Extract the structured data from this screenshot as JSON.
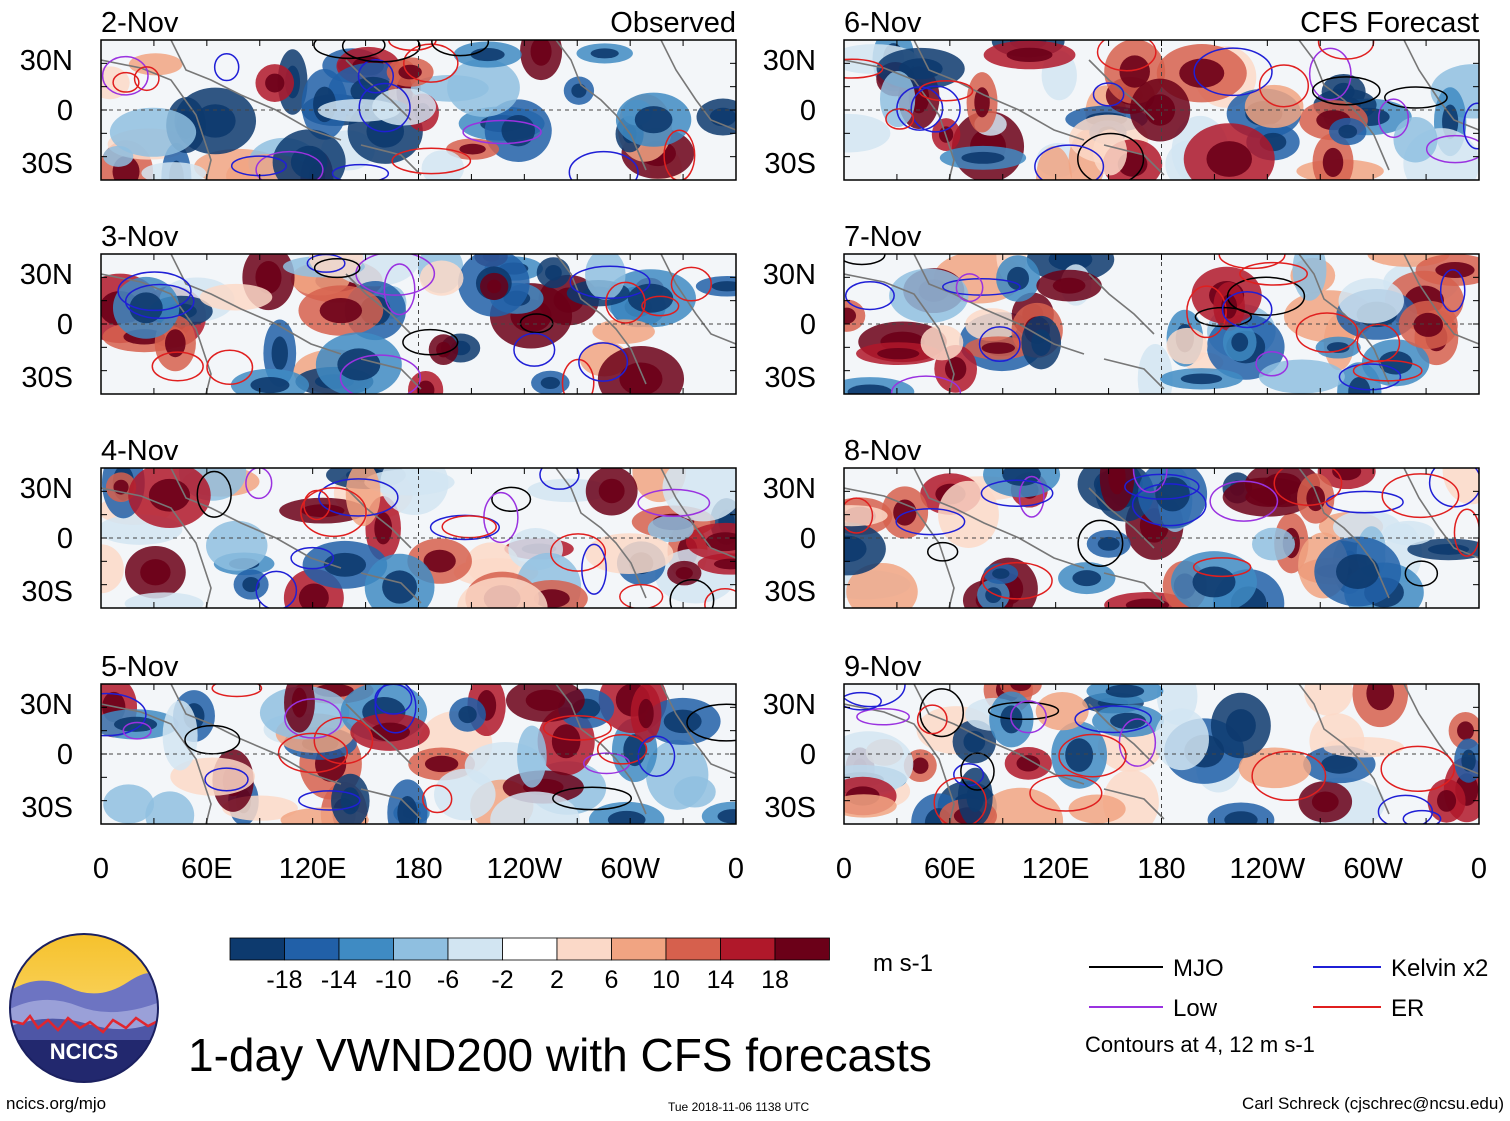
{
  "title": "1-day VWND200 with CFS forecasts",
  "left_header": "Observed",
  "right_header": "CFS Forecast",
  "units": "m s-1",
  "site": "ncics.org/mjo",
  "timestamp": "Tue 2018-11-06 1138 UTC",
  "author": "Carl Schreck (cjschrec@ncsu.edu)",
  "contour_note": "Contours at 4, 12 m s-1",
  "logo": {
    "text": "NCICS"
  },
  "legend": [
    {
      "label": "MJO",
      "color": "#000000"
    },
    {
      "label": "Kelvin x2",
      "color": "#1f1fd6"
    },
    {
      "label": "Low",
      "color": "#9a32e0"
    },
    {
      "label": "ER",
      "color": "#e01f1f"
    }
  ],
  "colorbar": {
    "colors": [
      "#0d3a6e",
      "#2160a8",
      "#3f8bc3",
      "#8fbfe0",
      "#d2e5f2",
      "#ffffff",
      "#fbd9c8",
      "#f1a482",
      "#d6604d",
      "#b0182a",
      "#6b0018"
    ],
    "labels": [
      "-18",
      "-14",
      "-10",
      "-6",
      "-2",
      "2",
      "6",
      "10",
      "14",
      "18"
    ]
  },
  "chart_data": [
    {
      "type": "heatmap",
      "panel": "2-Nov",
      "column": "Observed",
      "variable": "VWND200",
      "xlabels": [
        "0",
        "60E",
        "120E",
        "180",
        "120W",
        "60W",
        "0"
      ],
      "ylabels": [
        "30N",
        "0",
        "30S"
      ]
    },
    {
      "type": "heatmap",
      "panel": "3-Nov",
      "column": "Observed",
      "variable": "VWND200",
      "xlabels": [
        "0",
        "60E",
        "120E",
        "180",
        "120W",
        "60W",
        "0"
      ],
      "ylabels": [
        "30N",
        "0",
        "30S"
      ]
    },
    {
      "type": "heatmap",
      "panel": "4-Nov",
      "column": "Observed",
      "variable": "VWND200",
      "xlabels": [
        "0",
        "60E",
        "120E",
        "180",
        "120W",
        "60W",
        "0"
      ],
      "ylabels": [
        "30N",
        "0",
        "30S"
      ]
    },
    {
      "type": "heatmap",
      "panel": "5-Nov",
      "column": "Observed",
      "variable": "VWND200",
      "xlabels": [
        "0",
        "60E",
        "120E",
        "180",
        "120W",
        "60W",
        "0"
      ],
      "ylabels": [
        "30N",
        "0",
        "30S"
      ]
    },
    {
      "type": "heatmap",
      "panel": "6-Nov",
      "column": "CFS Forecast",
      "variable": "VWND200",
      "xlabels": [
        "0",
        "60E",
        "120E",
        "180",
        "120W",
        "60W",
        "0"
      ],
      "ylabels": [
        "30N",
        "0",
        "30S"
      ]
    },
    {
      "type": "heatmap",
      "panel": "7-Nov",
      "column": "CFS Forecast",
      "variable": "VWND200",
      "xlabels": [
        "0",
        "60E",
        "120E",
        "180",
        "120W",
        "60W",
        "0"
      ],
      "ylabels": [
        "30N",
        "0",
        "30S"
      ]
    },
    {
      "type": "heatmap",
      "panel": "8-Nov",
      "column": "CFS Forecast",
      "variable": "VWND200",
      "xlabels": [
        "0",
        "60E",
        "120E",
        "180",
        "120W",
        "60W",
        "0"
      ],
      "ylabels": [
        "30N",
        "0",
        "30S"
      ]
    },
    {
      "type": "heatmap",
      "panel": "9-Nov",
      "column": "CFS Forecast",
      "variable": "VWND200",
      "xlabels": [
        "0",
        "60E",
        "120E",
        "180",
        "120W",
        "60W",
        "0"
      ],
      "ylabels": [
        "30N",
        "0",
        "30S"
      ]
    }
  ]
}
